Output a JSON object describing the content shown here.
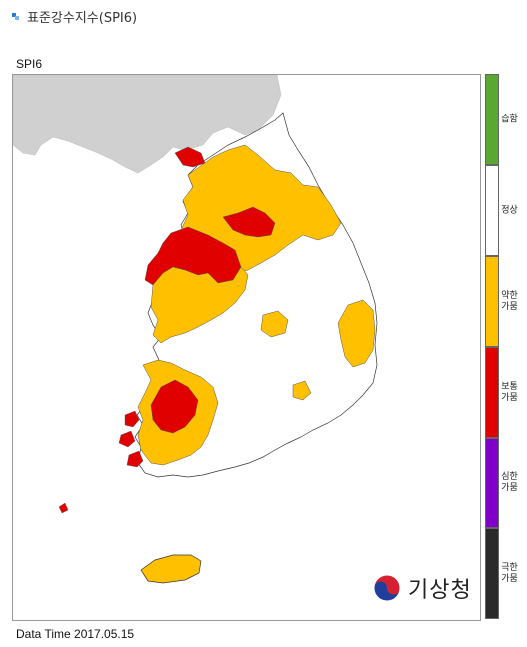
{
  "header": {
    "title": "표준강수지수(SPI6)"
  },
  "map": {
    "label": "SPI6",
    "data_time": "Data Time 2017.05.15"
  },
  "legend": [
    {
      "label": "습함",
      "color": "#5aa832"
    },
    {
      "label": "정상",
      "color": "#ffffff"
    },
    {
      "label": "약한 가뭄",
      "color": "#ffc000"
    },
    {
      "label": "보통 가뭄",
      "color": "#e00000"
    },
    {
      "label": "심한 가뭄",
      "color": "#8000c8"
    },
    {
      "label": "극한 가뭄",
      "color": "#2a2a2a"
    }
  ],
  "logo": {
    "text": "기상청",
    "icon": "kma-taegeuk-icon"
  },
  "colors": {
    "land_north": "#d0d0d0",
    "border": "#999999",
    "header_bullet": "#2b7bd6"
  }
}
